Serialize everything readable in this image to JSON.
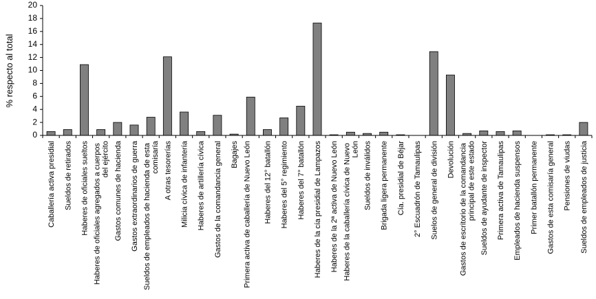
{
  "chart_data": {
    "type": "bar",
    "y_label": "% respecto al total",
    "categories": [
      "Caballería activa presidial",
      "Sueldos de retirados",
      "Haberes de oficiales sueltos",
      "Haberes de oficiales agregados a cuerpos del ejército",
      "Gastos comunes de hacienda",
      "Gastos extraordinarios de guerra",
      "Sueldos de empleados de hacienda de esta comisaría",
      "A otras tesorerías",
      "Milicia cívica de infantería",
      "Haberes de artillería cívica",
      "Gastos de la comandancia general",
      "Bagajes",
      "Primera activa de caballería de Nuevo León",
      "Haberes del 12° batallón",
      "Haberes del 5° regimiento",
      "Haberes del 7° batallón",
      "Haberes de la cía presidial de Lampazos",
      "Haberes de la 2ª activa de Nuevo León",
      "Haberes de la caballería cívica de Nuevo León",
      "Sueldos de inválidos",
      "Brigada ligera permanente",
      "Cía. presidial de Béjar",
      "2° Escuadrón de Tamaulipas",
      "Suelos de general de división",
      "Devolución",
      "Gastos de escritorio de la comandancia principal de este estado",
      "Sueldos de ayudante de inspector",
      "Primera activa de Tamaulipas",
      "Empleados de hacienda suspensos",
      "Primer batallón permanente",
      "Gastos de esta comisaría general",
      "Pensiones de viudas",
      "Sueldos de empleados de justicia"
    ],
    "values": [
      0.6,
      0.9,
      10.9,
      0.9,
      2.0,
      1.6,
      2.8,
      12.1,
      3.6,
      0.6,
      3.1,
      0.2,
      5.9,
      0.9,
      2.7,
      4.5,
      17.3,
      0.1,
      0.5,
      0.3,
      0.5,
      0.1,
      0,
      12.9,
      9.3,
      0.3,
      0.7,
      0.6,
      0.7,
      0,
      0.1,
      0.1,
      2.0
    ],
    "color": "#808080",
    "ylim": [
      0,
      20
    ],
    "yticks": [
      0,
      2,
      4,
      6,
      8,
      10,
      12,
      14,
      16,
      18,
      20
    ],
    "grid": false
  }
}
